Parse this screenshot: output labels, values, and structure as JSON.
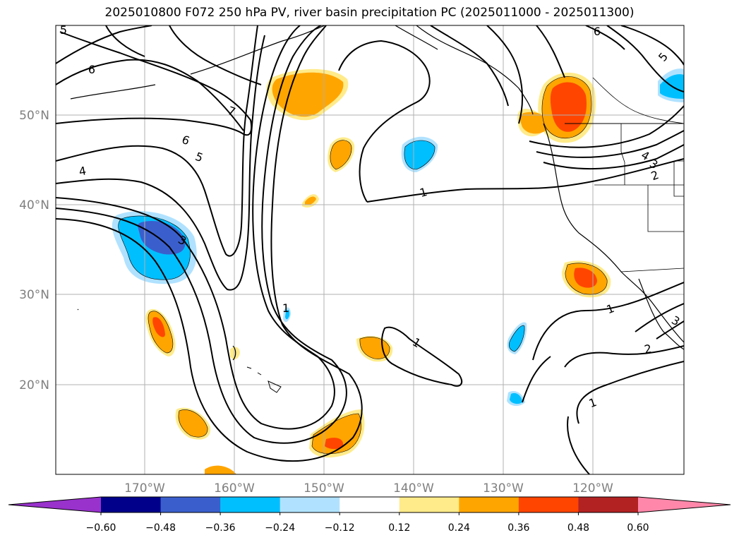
{
  "title": "2025010800 F072 250 hPa PV, river basin precipitation PC (2025011000 - 2025011300)",
  "lat_labels": [
    "50°N",
    "40°N",
    "30°N",
    "20°N"
  ],
  "lon_labels": [
    "170°W",
    "160°W",
    "150°W",
    "140°W",
    "130°W",
    "120°W"
  ],
  "colorbar": {
    "ticks": [
      "−0.60",
      "−0.48",
      "−0.36",
      "−0.24",
      "−0.12",
      "0.12",
      "0.24",
      "0.36",
      "0.48",
      "0.60"
    ],
    "colors": [
      "#9932cc",
      "#00008b",
      "#3a5fcd",
      "#00bfff",
      "#b0e2ff",
      "#ffffff",
      "#ffeb8a",
      "#ffa500",
      "#ff4500",
      "#b22222",
      "#ff88aa"
    ]
  },
  "contour_labels": [
    "5",
    "6",
    "7",
    "6",
    "5",
    "4",
    "3",
    "1",
    "6",
    "5",
    "4",
    "3",
    "2",
    "1",
    "1",
    "2",
    "1",
    "3",
    "1"
  ]
}
